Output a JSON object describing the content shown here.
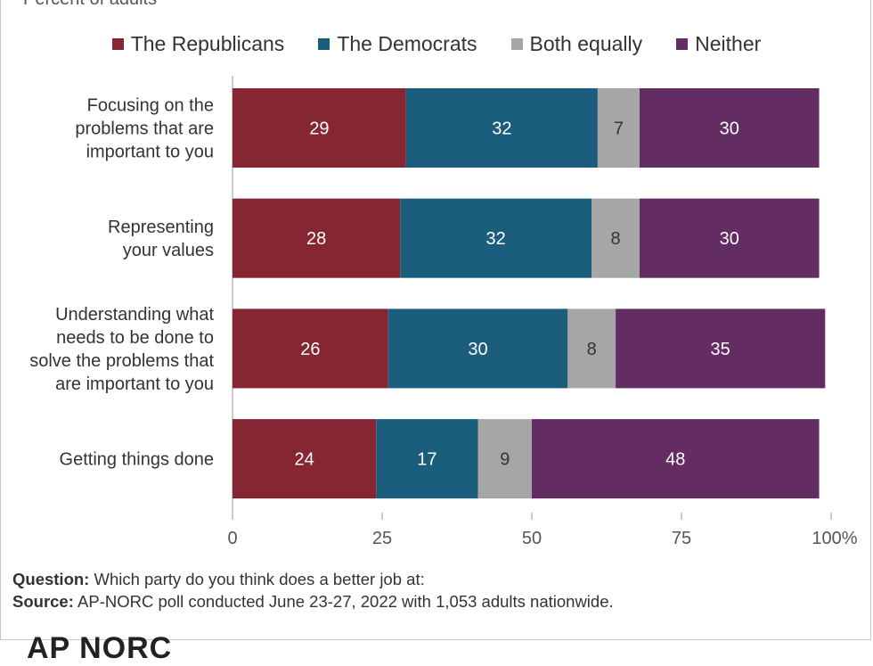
{
  "subtitle": "Percent of adults",
  "legend": [
    {
      "label": "The Republicans",
      "color": "#852632"
    },
    {
      "label": "The Democrats",
      "color": "#1a5d7c"
    },
    {
      "label": "Both equally",
      "color": "#a6a6a6"
    },
    {
      "label": "Neither",
      "color": "#632d63"
    }
  ],
  "chart_data": {
    "type": "bar",
    "orientation": "horizontal",
    "stacked": true,
    "categories": [
      [
        "Focusing on the",
        "problems that are",
        "important to you"
      ],
      [
        "Representing",
        "your values"
      ],
      [
        "Understanding what",
        "needs to be done to",
        "solve the problems that",
        "are important to you"
      ],
      [
        "Getting things done"
      ]
    ],
    "series": [
      {
        "name": "The Republicans",
        "color": "#852632",
        "values": [
          29,
          28,
          26,
          24
        ]
      },
      {
        "name": "The Democrats",
        "color": "#1a5d7c",
        "values": [
          32,
          32,
          30,
          17
        ]
      },
      {
        "name": "Both equally",
        "color": "#a6a6a6",
        "values": [
          7,
          8,
          8,
          9
        ]
      },
      {
        "name": "Neither",
        "color": "#632d63",
        "values": [
          30,
          30,
          35,
          48
        ]
      }
    ],
    "xlim": [
      0,
      100
    ],
    "xticks": [
      "0",
      "25",
      "50",
      "75",
      "100%"
    ],
    "legend_position": "top",
    "grid": false
  },
  "footer": {
    "question_label": "Question:",
    "question_text": " Which party do you think does a better job at:",
    "source_label": "Source:",
    "source_text": " AP-NORC poll conducted June 23-27, 2022 with 1,053 adults nationwide."
  },
  "logo_text": "AP  NORC"
}
